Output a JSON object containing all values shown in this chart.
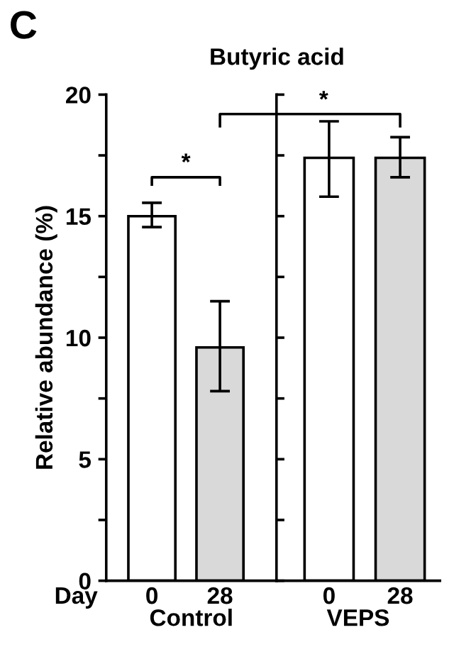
{
  "chart_data": [
    {
      "type": "bar",
      "title": "Butyric acid",
      "ylabel": "Relative abundance (%)",
      "xlabel": "Control",
      "categories": [
        "0",
        "28"
      ],
      "values": [
        15.0,
        9.6
      ],
      "colors": [
        "#ffffff",
        "#d9d9d9"
      ],
      "errors": [
        [
          14.55,
          15.55
        ],
        [
          7.8,
          11.5
        ]
      ],
      "ylim": [
        0,
        20
      ],
      "yticks": [
        0,
        {
          "value": 2.5,
          "label": null
        },
        5,
        {
          "value": 7.5,
          "label": null
        },
        10,
        {
          "value": 12.5,
          "label": null
        },
        15,
        {
          "value": 17.5,
          "label": null
        },
        20
      ],
      "annotations": [
        "C",
        "Day",
        "*"
      ],
      "grid": false
    },
    {
      "type": "bar",
      "xlabel": "VEPS",
      "categories": [
        "0",
        "28"
      ],
      "values": [
        17.4,
        17.4
      ],
      "colors": [
        "#ffffff",
        "#d9d9d9"
      ],
      "errors": [
        [
          15.8,
          18.9
        ],
        [
          16.6,
          18.25
        ]
      ],
      "ylim": [
        0,
        20
      ],
      "yticks": [
        0,
        {
          "value": 2.5,
          "label": null
        },
        5,
        {
          "value": 7.5,
          "label": null
        },
        10,
        {
          "value": 12.5,
          "label": null
        },
        15,
        {
          "value": 17.5,
          "label": null
        },
        20
      ],
      "tick_labels": "x",
      "annotations": [
        "*"
      ],
      "grid": false
    }
  ]
}
